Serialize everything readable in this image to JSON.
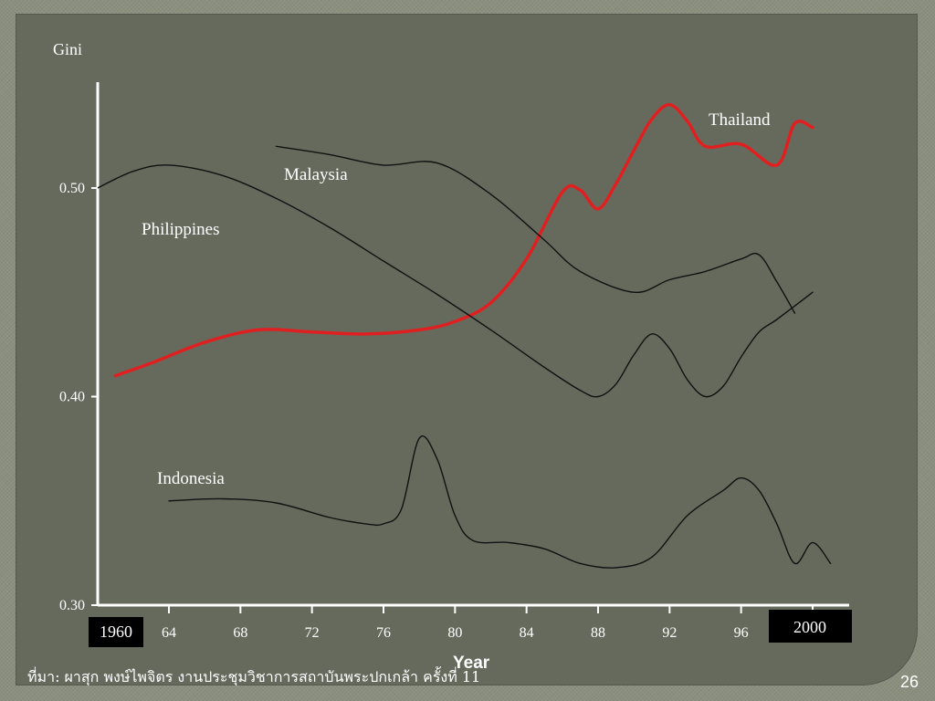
{
  "chart_data": {
    "type": "line",
    "ylabel": "Gini",
    "xlabel": "Year",
    "ylim": [
      0.3,
      0.55
    ],
    "xlim": [
      1959,
      2001
    ],
    "y_ticks": [
      "0.30",
      "0.40",
      "0.50"
    ],
    "x_ticks": [
      "1960",
      "64",
      "68",
      "72",
      "76",
      "80",
      "84",
      "88",
      "92",
      "96",
      "2000"
    ],
    "grid": false,
    "series": [
      {
        "name": "Thailand",
        "color": "#e02020",
        "x": [
          1961,
          1963,
          1966,
          1969,
          1972,
          1975,
          1978,
          1980,
          1982,
          1984,
          1986,
          1987,
          1988,
          1989,
          1990,
          1991,
          1992,
          1993,
          1994,
          1996,
          1998,
          1999,
          2000
        ],
        "y": [
          0.41,
          0.416,
          0.426,
          0.432,
          0.431,
          0.43,
          0.432,
          0.436,
          0.445,
          0.466,
          0.498,
          0.499,
          0.49,
          0.502,
          0.518,
          0.533,
          0.54,
          0.532,
          0.52,
          0.521,
          0.511,
          0.531,
          0.529
        ]
      },
      {
        "name": "Malaysia",
        "color": "#111111",
        "x": [
          1970,
          1973,
          1976,
          1979,
          1982,
          1985,
          1987,
          1990,
          1992,
          1994,
          1996,
          1997,
          1998,
          1999
        ],
        "y": [
          0.52,
          0.516,
          0.511,
          0.512,
          0.497,
          0.475,
          0.46,
          0.45,
          0.456,
          0.46,
          0.466,
          0.468,
          0.455,
          0.44
        ]
      },
      {
        "name": "Philippines",
        "color": "#111111",
        "x": [
          1960,
          1962,
          1964,
          1967,
          1970,
          1973,
          1976,
          1979,
          1982,
          1985,
          1987,
          1988,
          1989,
          1990,
          1991,
          1992,
          1993,
          1994,
          1995,
          1996,
          1997,
          1998,
          2000
        ],
        "y": [
          0.5,
          0.508,
          0.511,
          0.506,
          0.495,
          0.481,
          0.465,
          0.449,
          0.432,
          0.414,
          0.403,
          0.4,
          0.406,
          0.42,
          0.43,
          0.423,
          0.408,
          0.4,
          0.405,
          0.419,
          0.431,
          0.437,
          0.45
        ]
      },
      {
        "name": "Indonesia",
        "color": "#111111",
        "x": [
          1964,
          1967,
          1970,
          1973,
          1975,
          1976,
          1977,
          1978,
          1979,
          1980,
          1981,
          1983,
          1985,
          1987,
          1989,
          1991,
          1993,
          1995,
          1996,
          1997,
          1998,
          1999,
          2000,
          2001
        ],
        "y": [
          0.35,
          0.351,
          0.349,
          0.342,
          0.339,
          0.339,
          0.346,
          0.38,
          0.37,
          0.343,
          0.331,
          0.33,
          0.327,
          0.32,
          0.318,
          0.323,
          0.343,
          0.355,
          0.361,
          0.355,
          0.339,
          0.32,
          0.33,
          0.32
        ]
      }
    ],
    "series_labels": [
      "Thailand",
      "Malaysia",
      "Philippines",
      "Indonesia"
    ]
  },
  "footer": {
    "source": "ที่มา: ผาสุก พงษ์ไพจิตร งานประชุมวิชาการสถาบันพระปกเกล้า ครั้งที่ 11",
    "page_number": "26"
  }
}
